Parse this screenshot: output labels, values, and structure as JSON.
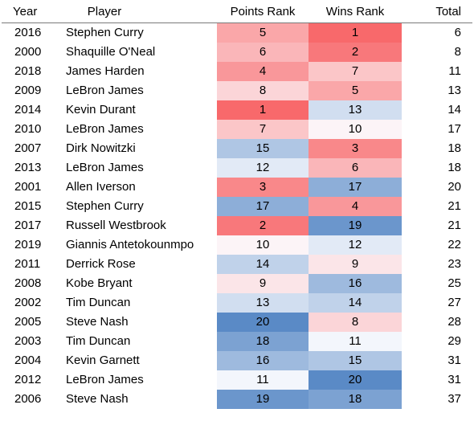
{
  "headers": {
    "year": "Year",
    "player": "Player",
    "points_rank": "Points Rank",
    "wins_rank": "Wins Rank",
    "total": "Total"
  },
  "colors": {
    "best": "#f8696b",
    "mid": "#fcfcff",
    "worst": "#5a8ac6"
  },
  "rows": [
    {
      "year": "2016",
      "player": "Stephen Curry",
      "points_rank": "5",
      "wins_rank": "1",
      "total": "6"
    },
    {
      "year": "2000",
      "player": "Shaquille O'Neal",
      "points_rank": "6",
      "wins_rank": "2",
      "total": "8"
    },
    {
      "year": "2018",
      "player": "James Harden",
      "points_rank": "4",
      "wins_rank": "7",
      "total": "11"
    },
    {
      "year": "2009",
      "player": "LeBron James",
      "points_rank": "8",
      "wins_rank": "5",
      "total": "13"
    },
    {
      "year": "2014",
      "player": "Kevin Durant",
      "points_rank": "1",
      "wins_rank": "13",
      "total": "14"
    },
    {
      "year": "2010",
      "player": "LeBron James",
      "points_rank": "7",
      "wins_rank": "10",
      "total": "17"
    },
    {
      "year": "2007",
      "player": "Dirk Nowitzki",
      "points_rank": "15",
      "wins_rank": "3",
      "total": "18"
    },
    {
      "year": "2013",
      "player": "LeBron James",
      "points_rank": "12",
      "wins_rank": "6",
      "total": "18"
    },
    {
      "year": "2001",
      "player": "Allen Iverson",
      "points_rank": "3",
      "wins_rank": "17",
      "total": "20"
    },
    {
      "year": "2015",
      "player": "Stephen Curry",
      "points_rank": "17",
      "wins_rank": "4",
      "total": "21"
    },
    {
      "year": "2017",
      "player": "Russell Westbrook",
      "points_rank": "2",
      "wins_rank": "19",
      "total": "21"
    },
    {
      "year": "2019",
      "player": "Giannis Antetokounmpo",
      "points_rank": "10",
      "wins_rank": "12",
      "total": "22"
    },
    {
      "year": "2011",
      "player": "Derrick Rose",
      "points_rank": "14",
      "wins_rank": "9",
      "total": "23"
    },
    {
      "year": "2008",
      "player": "Kobe Bryant",
      "points_rank": "9",
      "wins_rank": "16",
      "total": "25"
    },
    {
      "year": "2002",
      "player": "Tim Duncan",
      "points_rank": "13",
      "wins_rank": "14",
      "total": "27"
    },
    {
      "year": "2005",
      "player": "Steve Nash",
      "points_rank": "20",
      "wins_rank": "8",
      "total": "28"
    },
    {
      "year": "2003",
      "player": "Tim Duncan",
      "points_rank": "18",
      "wins_rank": "11",
      "total": "29"
    },
    {
      "year": "2004",
      "player": "Kevin Garnett",
      "points_rank": "16",
      "wins_rank": "15",
      "total": "31"
    },
    {
      "year": "2012",
      "player": "LeBron James",
      "points_rank": "11",
      "wins_rank": "20",
      "total": "31"
    },
    {
      "year": "2006",
      "player": "Steve Nash",
      "points_rank": "19",
      "wins_rank": "18",
      "total": "37"
    }
  ]
}
